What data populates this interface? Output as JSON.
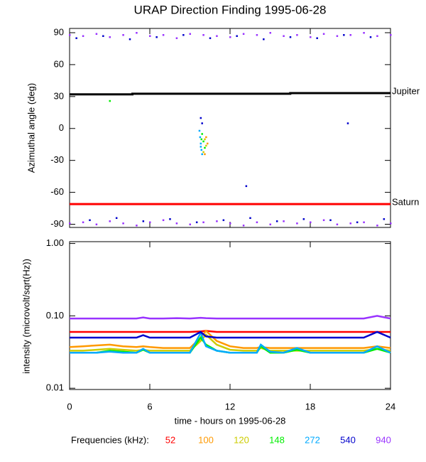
{
  "chart_data": [
    {
      "type": "scatter",
      "title": "URAP Direction Finding  1995-06-28",
      "ylabel": "Azimuthal angle (deg)",
      "xlim": [
        0,
        24
      ],
      "xticks": [
        0,
        6,
        12,
        18,
        24
      ],
      "ylim": [
        -93,
        94
      ],
      "yticks": [
        90,
        60,
        30,
        0,
        -30,
        -60,
        -90
      ],
      "series": [
        {
          "color": "#9933ff",
          "x": [
            0,
            1,
            2,
            3,
            4,
            5,
            6,
            7,
            8,
            9,
            10,
            11,
            12,
            13,
            14,
            15,
            16,
            17,
            18,
            19,
            20,
            21,
            22,
            23,
            24,
            0,
            1,
            2,
            3,
            4,
            5,
            6,
            7,
            8,
            9,
            10,
            11,
            12,
            13,
            14,
            15,
            16,
            17,
            18,
            19,
            20,
            21,
            22,
            23,
            24
          ],
          "values": [
            88,
            87,
            89,
            86,
            88,
            90,
            87,
            88,
            85,
            89,
            88,
            87,
            86,
            89,
            88,
            90,
            87,
            88,
            86,
            89,
            87,
            88,
            90,
            87,
            88,
            -89,
            -88,
            -90,
            -87,
            -89,
            -91,
            -88,
            -86,
            -89,
            -90,
            -88,
            -87,
            -89,
            -91,
            -88,
            -90,
            -87,
            -89,
            -88,
            -86,
            -90,
            -89,
            -88,
            -91,
            -89
          ]
        },
        {
          "color": "#0000cc",
          "x": [
            0.5,
            2.5,
            4.5,
            6.5,
            8.5,
            10.5,
            12.5,
            14.5,
            16.5,
            18.5,
            20.5,
            22.5,
            1.5,
            3.5,
            5.5,
            7.5,
            9.5,
            11.5,
            13.5,
            15.5,
            17.5,
            19.5,
            21.5,
            23.5,
            9.8,
            9.9,
            20.8,
            13.2
          ],
          "values": [
            85,
            87,
            84,
            86,
            88,
            85,
            87,
            84,
            86,
            85,
            88,
            86,
            -86,
            -84,
            -87,
            -85,
            -88,
            -86,
            -84,
            -87,
            -85,
            -86,
            -88,
            -85,
            10,
            5,
            5,
            -54
          ]
        },
        {
          "color": "#00aaff",
          "x": [
            9.7,
            9.75,
            9.8,
            9.85,
            9.9,
            9.8
          ],
          "values": [
            -2,
            -8,
            -14,
            -20,
            -24,
            -17
          ]
        },
        {
          "color": "#00ee00",
          "x": [
            3.0,
            9.9,
            10.0,
            10.1,
            9.85
          ],
          "values": [
            26,
            -5,
            -12,
            -18,
            -10
          ]
        },
        {
          "color": "#cccc00",
          "x": [
            10.0,
            10.1,
            10.2
          ],
          "values": [
            -22,
            -10,
            -16
          ]
        },
        {
          "color": "#ff9900",
          "x": [
            10.1,
            10.2,
            10.3
          ],
          "values": [
            -24,
            -8,
            -14
          ]
        }
      ],
      "lines": [
        {
          "label": "Jupiter",
          "color": "#000000",
          "x": [
            0,
            4.7,
            4.7,
            16.5,
            16.5,
            24
          ],
          "values": [
            32,
            32,
            32.6,
            32.6,
            33.2,
            33.2
          ]
        },
        {
          "label": "Saturn",
          "color": "#ff0000",
          "x": [
            0,
            24
          ],
          "values": [
            -71,
            -71
          ]
        }
      ]
    },
    {
      "type": "line",
      "xlabel": "time - hours on 1995-06-28",
      "ylabel": "intensity (microvolt/sqrt(Hz))",
      "log_scale": true,
      "xlim": [
        0,
        24
      ],
      "xticks": [
        0,
        6,
        12,
        18,
        24
      ],
      "ylim": [
        0.0096,
        1.06
      ],
      "yticks": [
        {
          "value": 1,
          "label": "1.00"
        },
        {
          "value": 0.1,
          "label": "0.10"
        },
        {
          "value": 0.01,
          "label": "0.01"
        }
      ],
      "legend_title": "Frequencies (kHz):",
      "x": [
        0,
        1,
        2,
        3,
        4,
        5,
        5.5,
        6,
        7,
        8,
        9,
        9.8,
        10.2,
        11,
        12,
        13,
        14,
        14.3,
        15,
        16,
        17,
        18,
        19,
        20,
        21,
        22,
        23,
        24
      ],
      "series": [
        {
          "name": "52",
          "color": "#ff0000",
          "values": [
            0.06,
            0.06,
            0.06,
            0.06,
            0.06,
            0.06,
            0.06,
            0.06,
            0.06,
            0.06,
            0.06,
            0.061,
            0.062,
            0.06,
            0.06,
            0.06,
            0.06,
            0.06,
            0.06,
            0.06,
            0.06,
            0.06,
            0.06,
            0.06,
            0.06,
            0.06,
            0.06,
            0.06
          ]
        },
        {
          "name": "100",
          "color": "#ff9900",
          "values": [
            0.037,
            0.038,
            0.039,
            0.04,
            0.038,
            0.037,
            0.038,
            0.037,
            0.036,
            0.036,
            0.036,
            0.05,
            0.062,
            0.045,
            0.038,
            0.036,
            0.036,
            0.037,
            0.036,
            0.036,
            0.036,
            0.036,
            0.036,
            0.036,
            0.036,
            0.036,
            0.038,
            0.036
          ]
        },
        {
          "name": "120",
          "color": "#cccc00",
          "values": [
            0.033,
            0.033,
            0.034,
            0.035,
            0.034,
            0.033,
            0.034,
            0.033,
            0.033,
            0.033,
            0.033,
            0.045,
            0.055,
            0.04,
            0.034,
            0.033,
            0.033,
            0.036,
            0.033,
            0.033,
            0.033,
            0.033,
            0.033,
            0.033,
            0.033,
            0.033,
            0.035,
            0.033
          ]
        },
        {
          "name": "148",
          "color": "#00ee00",
          "values": [
            0.031,
            0.031,
            0.031,
            0.033,
            0.032,
            0.031,
            0.034,
            0.031,
            0.031,
            0.031,
            0.031,
            0.05,
            0.04,
            0.033,
            0.031,
            0.031,
            0.031,
            0.038,
            0.031,
            0.031,
            0.034,
            0.031,
            0.031,
            0.031,
            0.031,
            0.031,
            0.035,
            0.031
          ]
        },
        {
          "name": "272",
          "color": "#00aaff",
          "values": [
            0.031,
            0.031,
            0.031,
            0.032,
            0.031,
            0.031,
            0.035,
            0.031,
            0.031,
            0.031,
            0.031,
            0.058,
            0.038,
            0.033,
            0.031,
            0.031,
            0.031,
            0.04,
            0.032,
            0.031,
            0.036,
            0.031,
            0.031,
            0.031,
            0.031,
            0.031,
            0.038,
            0.031
          ]
        },
        {
          "name": "540",
          "color": "#0000cc",
          "values": [
            0.05,
            0.05,
            0.05,
            0.05,
            0.05,
            0.05,
            0.054,
            0.05,
            0.05,
            0.05,
            0.05,
            0.06,
            0.052,
            0.05,
            0.05,
            0.05,
            0.05,
            0.05,
            0.05,
            0.05,
            0.05,
            0.05,
            0.05,
            0.05,
            0.05,
            0.05,
            0.06,
            0.05
          ]
        },
        {
          "name": "940",
          "color": "#9933ff",
          "values": [
            0.092,
            0.092,
            0.092,
            0.092,
            0.092,
            0.092,
            0.095,
            0.092,
            0.092,
            0.093,
            0.092,
            0.094,
            0.093,
            0.092,
            0.092,
            0.092,
            0.092,
            0.092,
            0.092,
            0.092,
            0.092,
            0.092,
            0.092,
            0.092,
            0.092,
            0.092,
            0.1,
            0.092
          ]
        }
      ]
    }
  ]
}
